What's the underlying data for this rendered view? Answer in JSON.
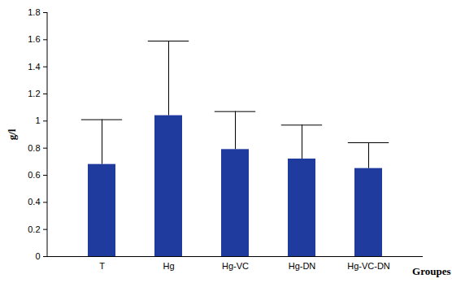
{
  "chart_data": {
    "type": "bar",
    "categories": [
      "T",
      "Hg",
      "Hg-VC",
      "Hg-DN",
      "Hg-VC-DN"
    ],
    "values": [
      0.68,
      1.04,
      0.79,
      0.72,
      0.65
    ],
    "errors": [
      0.33,
      0.55,
      0.28,
      0.25,
      0.19
    ],
    "color": "#1f3b9e",
    "y_label": "g/l",
    "x_label": "Groupes",
    "ylim": [
      0,
      1.8
    ],
    "yticks": [
      0,
      0.2,
      0.4,
      0.6,
      0.8,
      1,
      1.2,
      1.4,
      1.6,
      1.8
    ],
    "grid": false
  }
}
